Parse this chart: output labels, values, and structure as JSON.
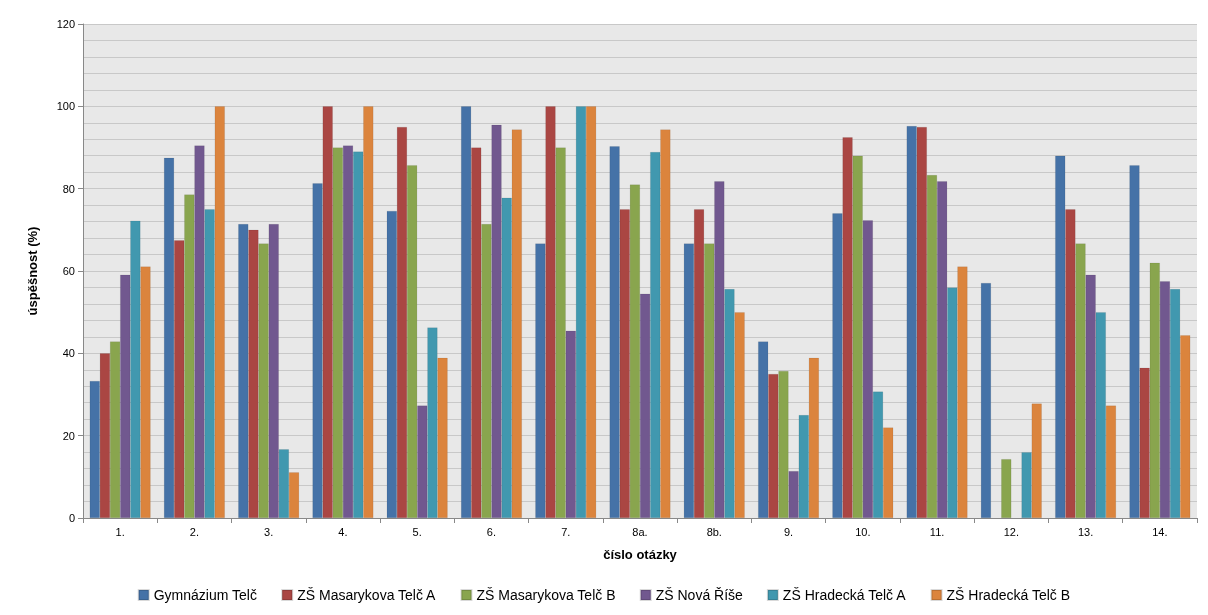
{
  "chart_data": {
    "type": "bar",
    "xlabel": "číslo otázky",
    "ylabel": "úspěšnost (%)",
    "categories": [
      "1.",
      "2.",
      "3.",
      "4.",
      "5.",
      "6.",
      "7.",
      "8a.",
      "8b.",
      "9.",
      "10.",
      "11.",
      "12.",
      "13.",
      "14."
    ],
    "series": [
      {
        "name": "Gymnázium Telč",
        "color": "#4572a7",
        "values": [
          33.3,
          87.5,
          71.4,
          81.3,
          74.6,
          100,
          66.7,
          90.3,
          66.7,
          42.9,
          74,
          95.2,
          57.1,
          88,
          85.7
        ]
      },
      {
        "name": "ZŠ Masarykova Telč A",
        "color": "#aa4643",
        "values": [
          40,
          67.5,
          70,
          100,
          95,
          90,
          100,
          75,
          75,
          35,
          92.5,
          95,
          null,
          75,
          36.5
        ]
      },
      {
        "name": "ZŠ Masarykova Telč B",
        "color": "#89a54e",
        "values": [
          42.9,
          78.6,
          66.7,
          90,
          85.7,
          71.4,
          90,
          81,
          66.7,
          35.7,
          88,
          83.3,
          14.3,
          66.7,
          62
        ]
      },
      {
        "name": "ZŠ Nová Říše",
        "color": "#71588f",
        "values": [
          59.1,
          90.5,
          71.4,
          90.5,
          27.3,
          95.5,
          45.5,
          54.5,
          81.8,
          11.4,
          72.3,
          81.8,
          null,
          59.1,
          57.5
        ]
      },
      {
        "name": "ZŠ Hradecká Telč A",
        "color": "#4198af",
        "values": [
          72.2,
          75,
          16.7,
          89,
          46.3,
          77.8,
          100,
          88.9,
          55.6,
          25,
          30.7,
          56,
          16,
          50,
          55.6
        ]
      },
      {
        "name": "ZŠ Hradecká Telč B",
        "color": "#db843d",
        "values": [
          61.1,
          100,
          11.1,
          100,
          38.9,
          94.4,
          100,
          94.4,
          50,
          38.9,
          22,
          61.1,
          27.8,
          27.3,
          44.4
        ]
      }
    ],
    "ylim": [
      0,
      120
    ],
    "yticks": [
      0,
      20,
      40,
      60,
      80,
      100,
      120
    ],
    "grid": "y",
    "legend": "bottom"
  }
}
